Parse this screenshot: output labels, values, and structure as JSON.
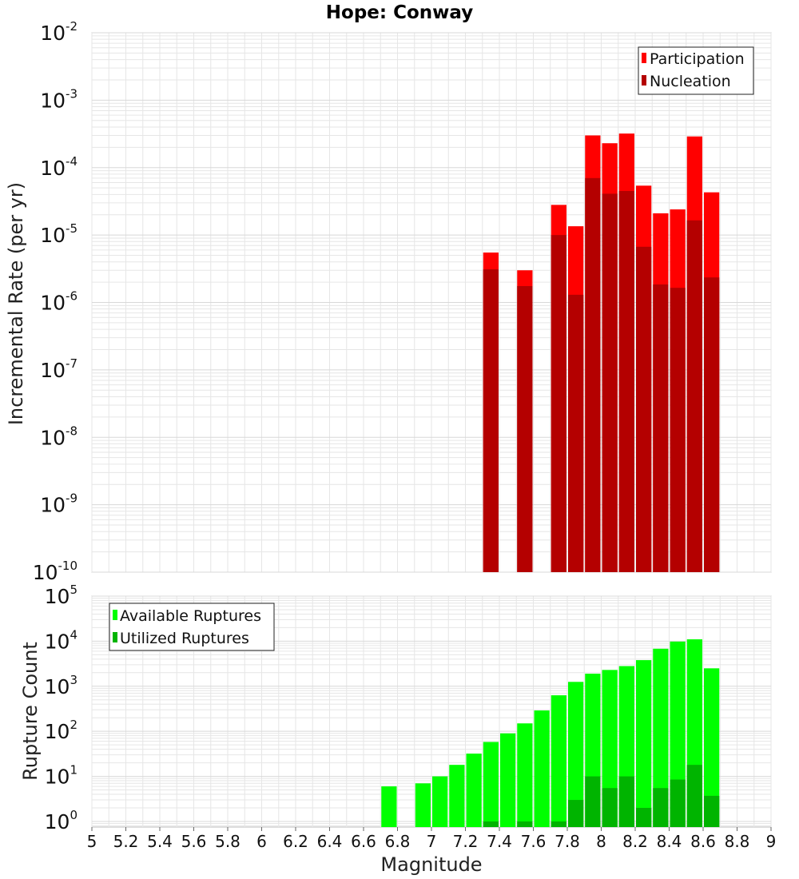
{
  "title": "Hope: Conway",
  "xlabel": "Magnitude",
  "colors": {
    "participation": "#ff0000",
    "nucleation": "#b40000",
    "available": "#00ff00",
    "utilized": "#00b400",
    "grid": "#e6e6e6",
    "frame": "#bbbbbb"
  },
  "chart_data": [
    {
      "type": "bar",
      "ylabel": "Incremental Rate (per yr)",
      "yscale": "log",
      "xlim": [
        5,
        9
      ],
      "ylim": [
        1e-10,
        0.01
      ],
      "grid": true,
      "legend_position": "top-right",
      "x": [
        7.35,
        7.55,
        7.75,
        7.85,
        7.95,
        8.05,
        8.15,
        8.25,
        8.35,
        8.45,
        8.55,
        8.65
      ],
      "series": [
        {
          "name": "Participation",
          "values": [
            5.5e-06,
            3e-06,
            2.8e-05,
            1.35e-05,
            0.0003,
            0.00023,
            0.00032,
            5.4e-05,
            2.1e-05,
            2.4e-05,
            0.00029,
            4.3e-05
          ]
        },
        {
          "name": "Nucleation",
          "values": [
            3.1e-06,
            1.75e-06,
            1e-05,
            1.3e-06,
            7e-05,
            4.1e-05,
            4.5e-05,
            6.7e-06,
            1.85e-06,
            1.65e-06,
            1.65e-05,
            2.35e-06
          ]
        }
      ],
      "y_tick_exponents": [
        -10,
        -9,
        -8,
        -7,
        -6,
        -5,
        -4,
        -3,
        -2
      ]
    },
    {
      "type": "bar",
      "ylabel": "Rupture Count",
      "yscale": "log",
      "xlim": [
        5,
        9
      ],
      "ylim": [
        0.75,
        100000.0
      ],
      "grid": true,
      "legend_position": "top-left",
      "x": [
        6.75,
        6.95,
        7.05,
        7.15,
        7.25,
        7.35,
        7.45,
        7.55,
        7.65,
        7.75,
        7.85,
        7.95,
        8.05,
        8.15,
        8.25,
        8.35,
        8.45,
        8.55,
        8.65
      ],
      "series": [
        {
          "name": "Available Ruptures",
          "values": [
            6,
            7,
            10,
            18,
            32,
            58,
            90,
            150,
            290,
            630,
            1250,
            1900,
            2300,
            2800,
            3800,
            6800,
            9800,
            11000,
            2500
          ]
        },
        {
          "name": "Utilized Ruptures",
          "values": [
            0,
            0,
            0,
            0,
            0,
            1,
            0,
            1,
            0,
            1,
            3,
            10,
            5.5,
            10,
            2,
            5.5,
            8.5,
            18,
            3.7
          ]
        }
      ],
      "y_tick_exponents": [
        0,
        1,
        2,
        3,
        4,
        5
      ]
    }
  ],
  "x_ticks": [
    "5",
    "5.2",
    "5.4",
    "5.6",
    "5.8",
    "6",
    "6.2",
    "6.4",
    "6.6",
    "6.8",
    "7",
    "7.2",
    "7.4",
    "7.6",
    "7.8",
    "8",
    "8.2",
    "8.4",
    "8.6",
    "8.8",
    "9"
  ]
}
